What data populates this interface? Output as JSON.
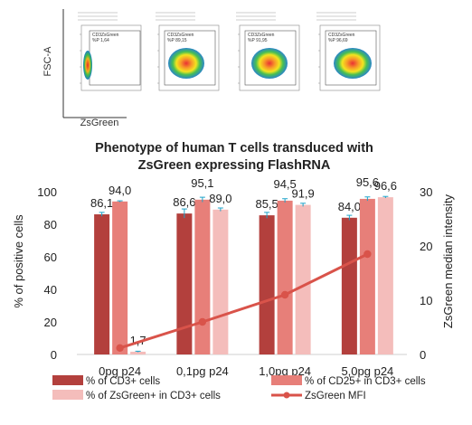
{
  "flow_panels": {
    "y_axis_label": "FSC-A",
    "x_axis_label": "ZsGreen",
    "panels": [
      {
        "gate_name": "CD3ZsGreen",
        "gate_percent": "%P 1,64"
      },
      {
        "gate_name": "CD3ZsGreen",
        "gate_percent": "%P 89,15"
      },
      {
        "gate_name": "CD3ZsGreen",
        "gate_percent": "%P 91,95"
      },
      {
        "gate_name": "CD3ZsGreen",
        "gate_percent": "%P 96,69"
      }
    ]
  },
  "chart_data": {
    "type": "bar",
    "title": "Phenotype of human T cells transduced with ZsGreen expressing FlashRNA",
    "categories": [
      "0pg p24",
      "0,1pg p24",
      "1,0pg p24",
      "5,0pg p24"
    ],
    "ylabel": "% of positive cells",
    "y2label": "ZsGreen median intensity",
    "ylim": [
      0,
      100
    ],
    "y2lim": [
      0,
      30
    ],
    "yticks": [
      "0",
      "20",
      "40",
      "60",
      "80",
      "100"
    ],
    "y2ticks": [
      "0",
      "10",
      "20",
      "30"
    ],
    "series": [
      {
        "name": "% of CD3+ cells",
        "color": "#b3403d",
        "values": [
          86.1,
          86.6,
          85.5,
          84.0
        ],
        "labels": [
          "86,1",
          "86,6",
          "85,5",
          "84,0"
        ],
        "errors": [
          1.2,
          2.8,
          1.8,
          1.5
        ]
      },
      {
        "name": "% of CD25+ in CD3+ cells",
        "color": "#e77f79",
        "values": [
          94.0,
          95.1,
          94.5,
          95.6
        ],
        "labels": [
          "94,0",
          "95,1",
          "94,5",
          "95,6"
        ],
        "errors": [
          0.4,
          1.5,
          1.2,
          1.2
        ]
      },
      {
        "name": "% of ZsGreen+ in CD3+ cells",
        "color": "#f4bdbb",
        "values": [
          1.7,
          89.0,
          91.9,
          96.6
        ],
        "labels": [
          "1,7",
          "89,0",
          "91,9",
          "96,6"
        ],
        "errors": [
          0.3,
          1.0,
          1.0,
          0.5
        ]
      }
    ],
    "line": {
      "name": "ZsGreen MFI",
      "color": "#d9534a",
      "axis": "right",
      "values": [
        1.2,
        6.0,
        11.0,
        18.5
      ]
    },
    "error_bar_color": "#1fa3c9",
    "legend": "bottom",
    "legend_order": [
      "% of CD3+ cells",
      "% of CD25+ in CD3+ cells",
      "% of ZsGreen+ in CD3+ cells",
      "ZsGreen MFI"
    ]
  }
}
